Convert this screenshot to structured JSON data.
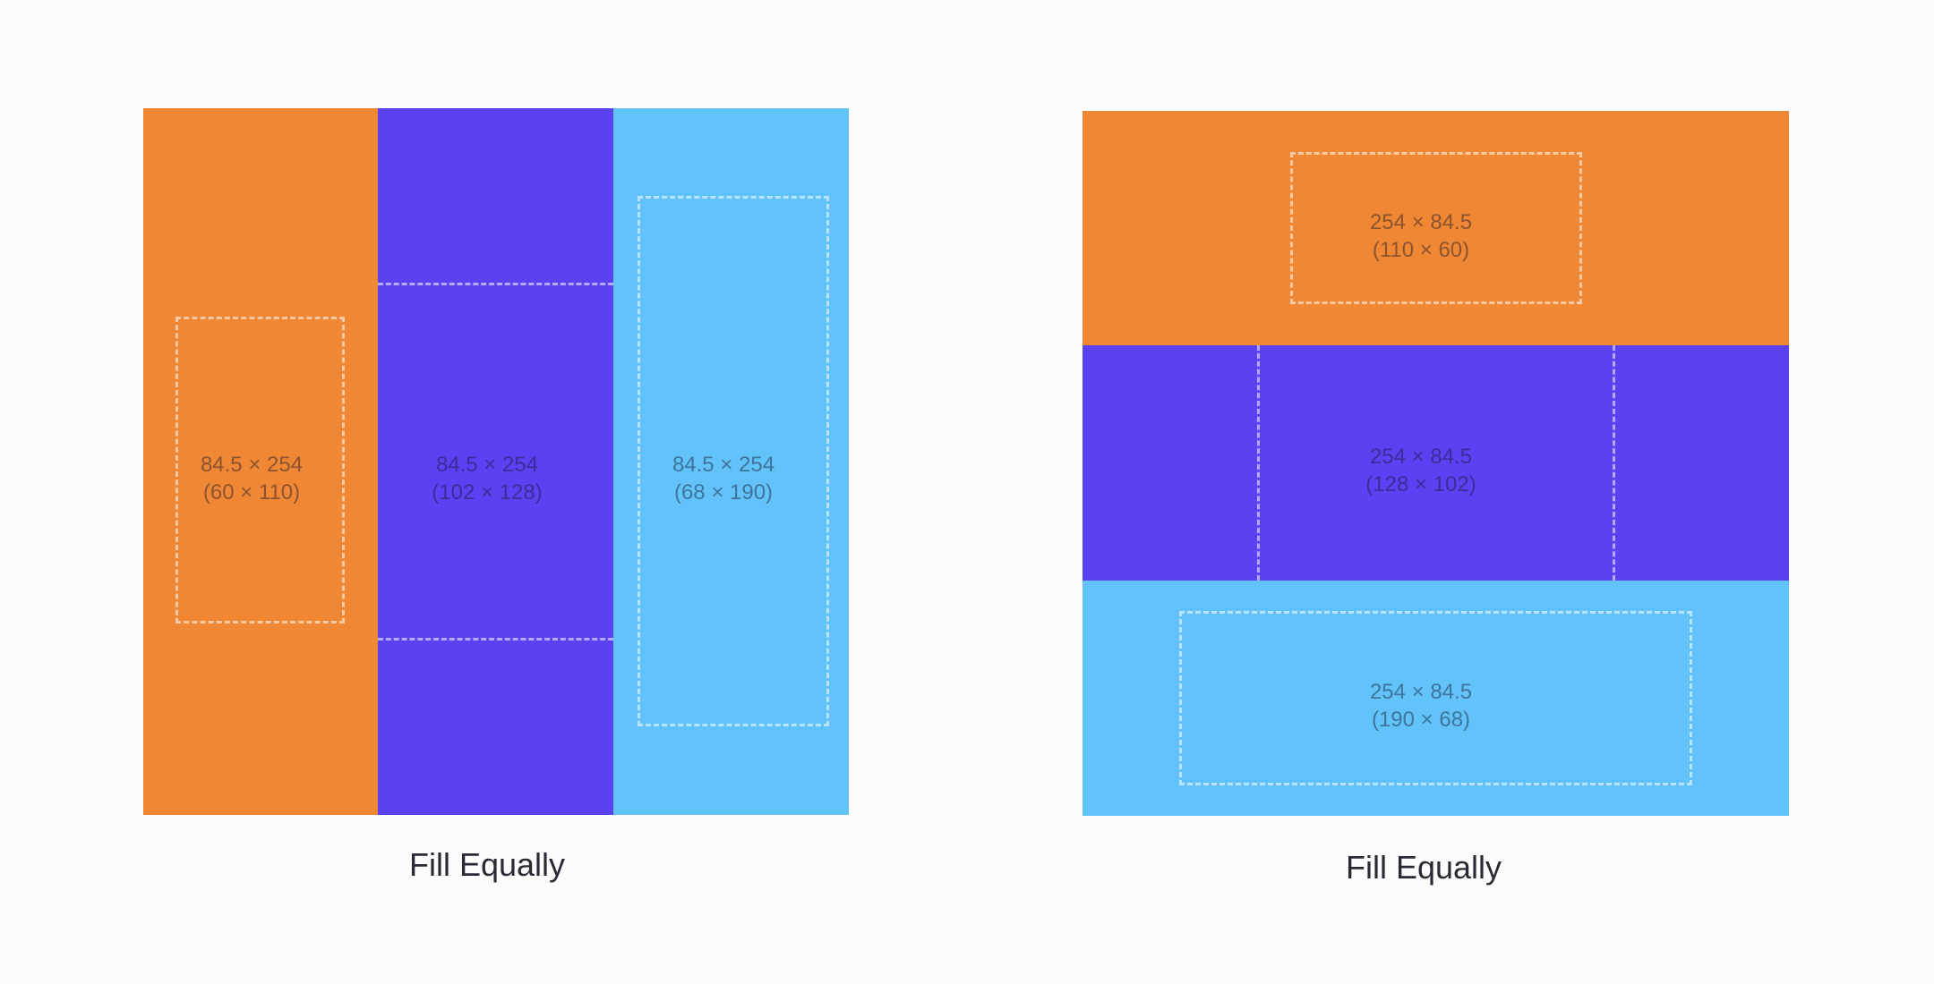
{
  "colors": {
    "orange": "#ef8734",
    "purple": "#5a42f3",
    "sky": "#62c3fa",
    "background": "#fcfcfd"
  },
  "top_titles": [
    "",
    ""
  ],
  "diagrams": [
    {
      "orientation": "horizontal",
      "caption": "Fill Equally",
      "items": [
        {
          "color": "orange",
          "size": "84.5 × 254",
          "intrinsic": "(60 × 110)"
        },
        {
          "color": "purple",
          "size": "84.5 × 254",
          "intrinsic": "(102 × 128)"
        },
        {
          "color": "sky",
          "size": "84.5 × 254",
          "intrinsic": "(68 × 190)"
        }
      ]
    },
    {
      "orientation": "vertical",
      "caption": "Fill Equally",
      "items": [
        {
          "color": "orange",
          "size": "254 × 84.5",
          "intrinsic": "(110 × 60)"
        },
        {
          "color": "purple",
          "size": "254 × 84.5",
          "intrinsic": "(128 × 102)"
        },
        {
          "color": "sky",
          "size": "254 × 84.5",
          "intrinsic": "(190 × 68)"
        }
      ]
    }
  ]
}
